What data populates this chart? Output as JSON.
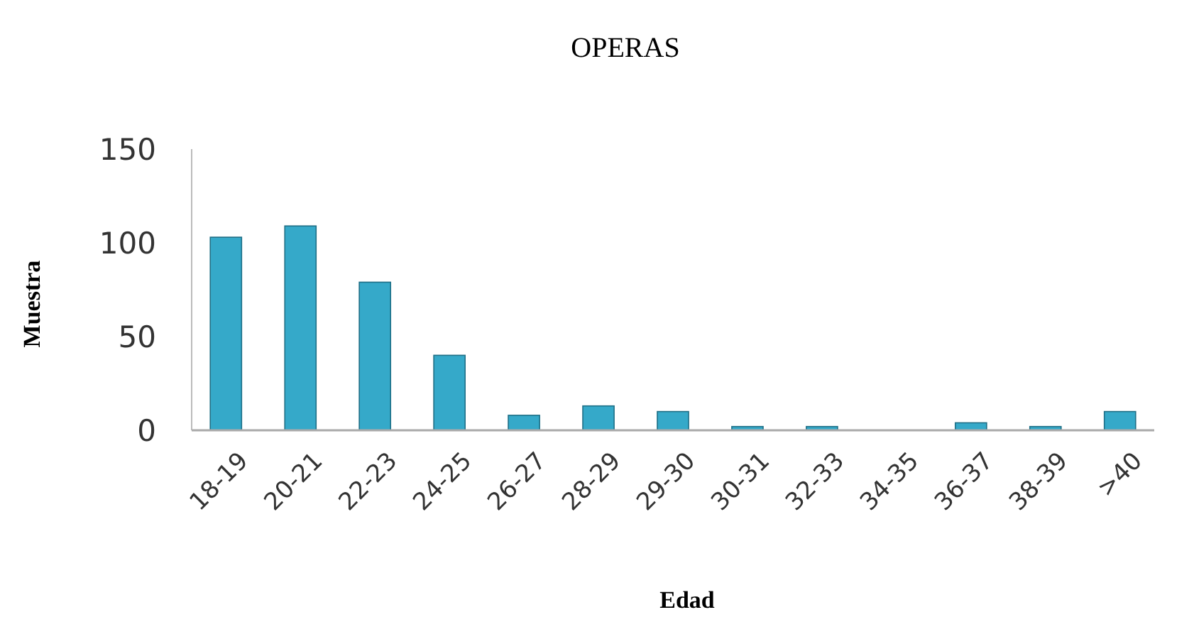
{
  "chart_data": {
    "type": "bar",
    "title": "OPERAS",
    "xlabel": "Edad",
    "ylabel": "Muestra",
    "categories": [
      "18-19",
      "20-21",
      "22-23",
      "24-25",
      "26-27",
      "28-29",
      "29-30",
      "30-31",
      "32-33",
      "34-35",
      "36-37",
      "38-39",
      ">40"
    ],
    "values": [
      103,
      109,
      79,
      40,
      8,
      13,
      10,
      2,
      2,
      0,
      4,
      2,
      10
    ],
    "color": "#35a9c9",
    "ylim": [
      0,
      150
    ],
    "yticks": [
      0,
      50,
      100,
      150
    ],
    "grid": false
  }
}
